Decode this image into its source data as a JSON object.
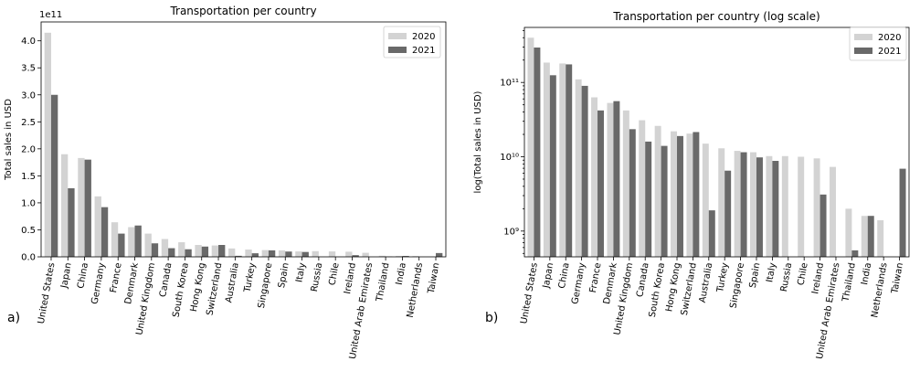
{
  "chart_data": [
    {
      "type": "bar",
      "panel_label": "a)",
      "title": "Transportation per country",
      "xlabel": "",
      "ylabel": "Total sales in USD",
      "y_offset_label": "1e11",
      "y_scale": "linear",
      "ylim": [
        0,
        435000000000.0
      ],
      "yticks": [
        0,
        50000000000.0,
        100000000000.0,
        150000000000.0,
        200000000000.0,
        250000000000.0,
        300000000000.0,
        350000000000.0,
        400000000000.0
      ],
      "ytick_labels": [
        "0.0",
        "0.5",
        "1.0",
        "1.5",
        "2.0",
        "2.5",
        "3.0",
        "3.5",
        "4.0"
      ],
      "grid": false,
      "legend_position": "top-right",
      "categories": [
        "United States",
        "Japan",
        "China",
        "Germany",
        "France",
        "Denmark",
        "United Kingdom",
        "Canada",
        "South Korea",
        "Hong Kong",
        "Switzerland",
        "Australia",
        "Turkey",
        "Singapore",
        "Spain",
        "Italy",
        "Russia",
        "Chile",
        "Ireland",
        "United Arab Emirates",
        "Thailand",
        "India",
        "Netherlands",
        "Taiwan"
      ],
      "series": [
        {
          "name": "2020",
          "color": "#d3d3d3",
          "values": [
            415000000000.0,
            190000000000.0,
            183000000000.0,
            112000000000.0,
            64000000000.0,
            55000000000.0,
            43000000000.0,
            33000000000.0,
            27000000000.0,
            22000000000.0,
            21000000000.0,
            15500000000.0,
            13500000000.0,
            12500000000.0,
            12000000000.0,
            10000000000.0,
            10500000000.0,
            10000000000.0,
            9500000000.0,
            7500000000.0,
            2000000000.0,
            1600000000.0,
            1400000000.0,
            0
          ]
        },
        {
          "name": "2021",
          "color": "#696969",
          "values": [
            300000000000.0,
            127000000000.0,
            180000000000.0,
            92000000000.0,
            43000000000.0,
            58000000000.0,
            25000000000.0,
            16000000000.0,
            14000000000.0,
            19000000000.0,
            22000000000.0,
            1900000000.0,
            6600000000.0,
            12000000000.0,
            9800000000.0,
            9000000000.0,
            0,
            0,
            3100000000.0,
            0,
            550000000.0,
            1600000000.0,
            0,
            7000000000.0
          ]
        }
      ]
    },
    {
      "type": "bar",
      "panel_label": "b)",
      "title": "Transportation per country (log scale)",
      "xlabel": "",
      "ylabel": "log(Total sales in USD)",
      "y_scale": "log",
      "ylim": [
        450000000.0,
        550000000000.0
      ],
      "yticks": [
        1000000000.0,
        10000000000.0,
        100000000000.0
      ],
      "ytick_labels": [
        "10⁹",
        "10¹⁰",
        "10¹¹"
      ],
      "grid": false,
      "legend_position": "top-right",
      "categories": [
        "United States",
        "Japan",
        "China",
        "Germany",
        "France",
        "Denmark",
        "United Kingdom",
        "Canada",
        "South Korea",
        "Hong Kong",
        "Switzerland",
        "Australia",
        "Turkey",
        "Singapore",
        "Spain",
        "Italy",
        "Russia",
        "Chile",
        "Ireland",
        "United Arab Emirates",
        "Thailand",
        "India",
        "Netherlands",
        "Taiwan"
      ],
      "series": [
        {
          "name": "2020",
          "color": "#d3d3d3",
          "values": [
            400000000000.0,
            185000000000.0,
            180000000000.0,
            110000000000.0,
            63000000000.0,
            53000000000.0,
            42000000000.0,
            31000000000.0,
            26000000000.0,
            22000000000.0,
            20500000000.0,
            15000000000.0,
            13000000000.0,
            12000000000.0,
            11500000000.0,
            10200000000.0,
            10200000000.0,
            10000000000.0,
            9500000000.0,
            7300000000.0,
            2000000000.0,
            1600000000.0,
            1400000000.0,
            0
          ]
        },
        {
          "name": "2021",
          "color": "#696969",
          "values": [
            295000000000.0,
            125000000000.0,
            175000000000.0,
            90000000000.0,
            42000000000.0,
            56000000000.0,
            23500000000.0,
            16000000000.0,
            14000000000.0,
            19000000000.0,
            21500000000.0,
            1900000000.0,
            6500000000.0,
            11500000000.0,
            9800000000.0,
            8800000000.0,
            0,
            0,
            3100000000.0,
            0,
            550000000.0,
            1600000000.0,
            0,
            6900000000.0
          ]
        }
      ]
    }
  ]
}
